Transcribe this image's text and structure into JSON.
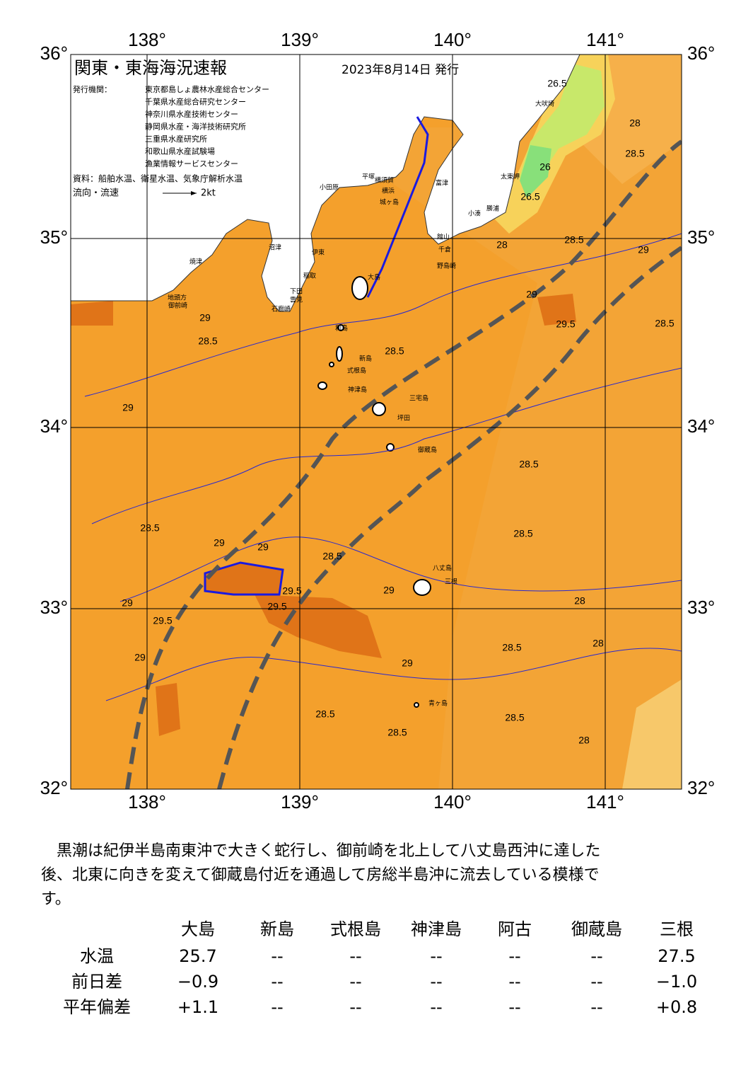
{
  "header": {
    "title": "関東・東海海況速報",
    "date": "2023年8月14日 発行",
    "issuer_label": "発行機関：",
    "issuers": [
      "東京都島しょ農林水産総合センター",
      "千葉県水産総合研究センター",
      "神奈川県水産技術センター",
      "静岡県水産・海洋技術研究所",
      "三重県水産研究所",
      "和歌山県水産試験場",
      "漁業情報サービスセンター"
    ],
    "source": "資料：船舶水温、衛星水温、気象庁解析水温",
    "legend_label": "流向・流速",
    "legend_speed": "2kt"
  },
  "axes": {
    "longitudes": [
      "138°",
      "139°",
      "140°",
      "141°"
    ],
    "latitudes": [
      "36°",
      "35°",
      "34°",
      "33°",
      "32°"
    ]
  },
  "places": [
    "大吠埼",
    "太東岬",
    "小湊",
    "勝浦",
    "館山",
    "千倉",
    "野島崎",
    "富津",
    "横須賀",
    "横浜",
    "城ヶ島",
    "平塚",
    "小田原",
    "伊東",
    "稲取",
    "下田",
    "石廊崎",
    "雲見",
    "沼津",
    "焼津",
    "御前崎",
    "地頭方",
    "大島",
    "利島",
    "新島",
    "式根島",
    "神津島",
    "三宅島",
    "坪田",
    "御蔵島",
    "八丈島",
    "三根",
    "青ヶ島"
  ],
  "contour_labels": [
    "26.5",
    "26",
    "26.5",
    "28",
    "28.5",
    "28",
    "28.5",
    "29",
    "28.5",
    "29",
    "28.5",
    "29",
    "29.5",
    "28.5",
    "29",
    "28.5",
    "29",
    "28.5",
    "29",
    "29",
    "29.5",
    "29",
    "29.5",
    "29.5",
    "29",
    "28.5",
    "28.5",
    "29",
    "28",
    "28",
    "28.5",
    "28.5",
    "28.5",
    "28.5",
    "28"
  ],
  "summary": {
    "lines": [
      "　黒潮は紀伊半島南東沖で大きく蛇行し、御前崎を北上して八丈島西沖に達した",
      "後、北東に向きを変えて御蔵島付近を通過して房総半島沖に流去している模様で",
      "す。"
    ]
  },
  "table": {
    "columns": [
      "大島",
      "新島",
      "式根島",
      "神津島",
      "阿古",
      "御蔵島",
      "三根"
    ],
    "rows": [
      {
        "label": "水温",
        "values": [
          "25.7",
          "--",
          "--",
          "--",
          "--",
          "--",
          "27.5"
        ]
      },
      {
        "label": "前日差",
        "values": [
          "−0.9",
          "--",
          "--",
          "--",
          "--",
          "--",
          "−1.0"
        ]
      },
      {
        "label": "平年偏差",
        "values": [
          "+1.1",
          "--",
          "--",
          "--",
          "--",
          "--",
          "+0.8"
        ]
      }
    ]
  }
}
